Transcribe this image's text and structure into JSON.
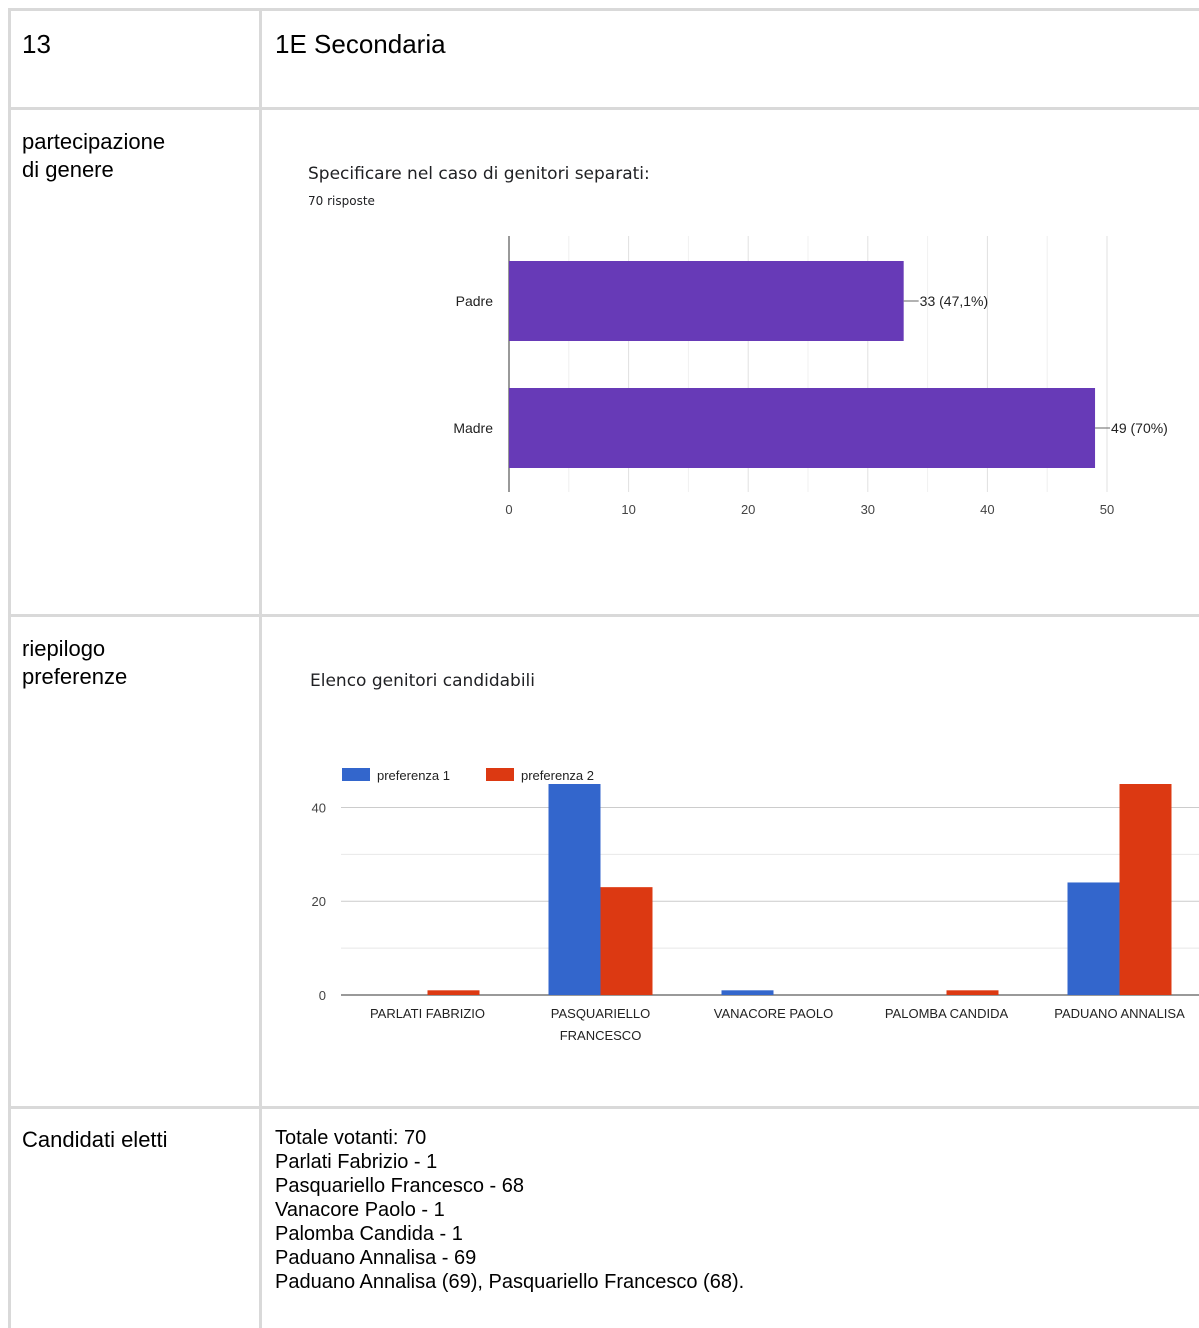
{
  "row_number": "13",
  "class_name": "1E Secondaria",
  "labels": {
    "participation": "partecipazione\ndi genere",
    "preferences": "riepilogo\npreferenze",
    "elected": "Candidati eletti"
  },
  "chart_data": [
    {
      "type": "bar",
      "orientation": "horizontal",
      "title": "Specificare nel caso di genitori separati:",
      "subtitle": "70 risposte",
      "categories": [
        "Padre",
        "Madre"
      ],
      "values": [
        33,
        49
      ],
      "value_labels": [
        "33 (47,1%)",
        "49 (70%)"
      ],
      "xlim": [
        0,
        50
      ],
      "ticks": [
        "0",
        "10",
        "20",
        "30",
        "40",
        "50"
      ],
      "color": "#673ab7"
    },
    {
      "type": "bar",
      "title": "Elenco genitori candidabili",
      "categories": [
        "PARLATI FABRIZIO",
        "PASQUARIELLO\nFRANCESCO",
        "VANACORE PAOLO",
        "PALOMBA CANDIDA",
        "PADUANO ANNALISA"
      ],
      "series": [
        {
          "name": "preferenza 1",
          "color": "#3366cc",
          "values": [
            0,
            45,
            1,
            0,
            24
          ]
        },
        {
          "name": "preferenza 2",
          "color": "#dc3912",
          "values": [
            1,
            23,
            0,
            1,
            45
          ]
        }
      ],
      "ylim": [
        0,
        45
      ],
      "ticks": [
        "0",
        "20",
        "40"
      ],
      "legend": "top-left"
    }
  ],
  "summary_lines": [
    "Totale votanti: 70",
    "Parlati Fabrizio - 1",
    "Pasquariello Francesco - 68",
    "Vanacore Paolo - 1",
    "Palomba Candida - 1",
    "Paduano Annalisa - 69",
    "Paduano Annalisa (69), Pasquariello Francesco (68)."
  ]
}
